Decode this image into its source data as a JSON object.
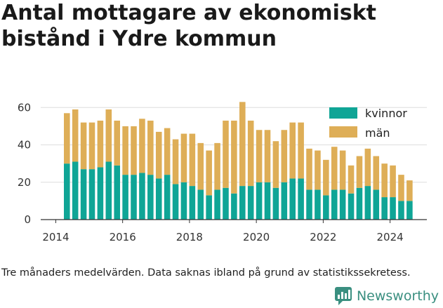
{
  "title": "Antal mottagare av ekonomiskt bistånd i Ydre kommun",
  "caption": "Tre månaders medelvärden. Data saknas ibland på grund av statistikssekretess.",
  "brand": {
    "name": "Newsworthy",
    "icon": "newsworthy-logo-icon",
    "color": "#3a8f80"
  },
  "colors": {
    "kvinnor": "#0fa596",
    "man": "#deae57",
    "grid": "#dddddd",
    "axis": "#333333"
  },
  "chart_data": {
    "type": "bar",
    "stacked": true,
    "grid": true,
    "legend_position": "top-right",
    "xlim": [
      2013.55,
      2025.1
    ],
    "ylim": [
      0,
      65
    ],
    "xticks": [
      2014,
      2016,
      2018,
      2020,
      2022,
      2024
    ],
    "yticks": [
      0,
      20,
      40,
      60
    ],
    "x": [
      2014.333,
      2014.583,
      2014.833,
      2015.083,
      2015.333,
      2015.583,
      2015.833,
      2016.083,
      2016.333,
      2016.583,
      2016.833,
      2017.083,
      2017.333,
      2017.583,
      2017.833,
      2018.083,
      2018.333,
      2018.583,
      2018.833,
      2019.083,
      2019.333,
      2019.583,
      2019.833,
      2020.083,
      2020.333,
      2020.583,
      2020.833,
      2021.083,
      2021.333,
      2021.583,
      2021.833,
      2022.083,
      2022.333,
      2022.583,
      2022.833,
      2023.083,
      2023.333,
      2023.583,
      2023.833,
      2024.083,
      2024.333,
      2024.583
    ],
    "series": [
      {
        "name": "kvinnor",
        "color": "#0fa596",
        "values": [
          30,
          31,
          27,
          27,
          28,
          31,
          29,
          24,
          24,
          25,
          24,
          22,
          24,
          19,
          20,
          18,
          16,
          13,
          16,
          17,
          14,
          18,
          18,
          20,
          20,
          17,
          20,
          22,
          22,
          16,
          16,
          13,
          16,
          16,
          14,
          17,
          18,
          16,
          12,
          12,
          10,
          10
        ]
      },
      {
        "name": "män",
        "color": "#deae57",
        "values": [
          27,
          28,
          25,
          25,
          25,
          28,
          24,
          26,
          26,
          29,
          29,
          25,
          25,
          24,
          26,
          28,
          25,
          24,
          25,
          36,
          39,
          45,
          35,
          28,
          28,
          25,
          28,
          30,
          30,
          22,
          21,
          19,
          23,
          21,
          15,
          17,
          20,
          18,
          18,
          17,
          14,
          11
        ]
      }
    ]
  }
}
